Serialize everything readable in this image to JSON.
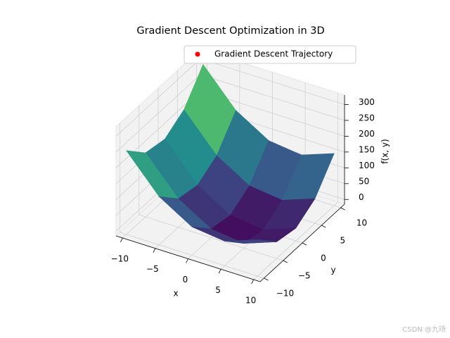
{
  "chart_data": {
    "type": "surface3d",
    "title": "Gradient Descent Optimization in 3D",
    "trajectory": {
      "name": "Gradient Descent Trajectory",
      "color": "#ff0000"
    },
    "xlabel": "x",
    "ylabel": "y",
    "zlabel": "f(x, y)",
    "xlim": [
      -11,
      11
    ],
    "ylim": [
      -11,
      11
    ],
    "zlim": [
      -15,
      330
    ],
    "xticks": [
      {
        "value": -10,
        "label": "−10"
      },
      {
        "value": -5,
        "label": "−5"
      },
      0,
      5,
      10
    ],
    "yticks": [
      {
        "value": -10,
        "label": "−10"
      },
      {
        "value": -5,
        "label": "−5"
      },
      0,
      5,
      10
    ],
    "zticks": [
      0,
      50,
      100,
      150,
      200,
      250,
      300
    ],
    "grid": true,
    "surface": {
      "colormap": "viridis",
      "x": [
        -10,
        -5,
        0,
        5,
        10
      ],
      "y": [
        -10,
        -5,
        0,
        5,
        10
      ],
      "z": [
        [
          250,
          137.5,
          75,
          62.5,
          100
        ],
        [
          187.5,
          75,
          12.5,
          0,
          37.5
        ],
        [
          175,
          62.5,
          0,
          -12.5,
          25
        ],
        [
          212.5,
          100,
          37.5,
          25,
          62.5
        ],
        [
          300,
          187.5,
          125,
          112.5,
          150
        ]
      ]
    }
  },
  "watermark": "CSDN @九玚"
}
